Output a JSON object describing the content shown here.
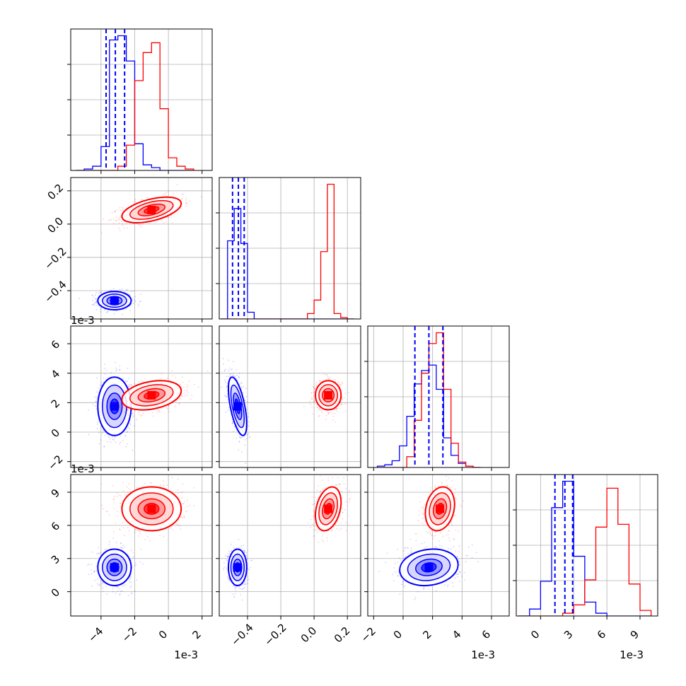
{
  "figure": {
    "type": "corner-plot",
    "offset_text": "1e-3",
    "grid": true
  },
  "colors": {
    "blue": "#0000ff",
    "red": "#ff0000",
    "grid": "#b0b0b0"
  },
  "parameters": [
    {
      "id": "p0",
      "scale": 0.001,
      "range": [
        -5.8,
        2.6
      ],
      "ticks": [
        -4,
        -2,
        0,
        2
      ],
      "offset_text": "1e-3",
      "blue": {
        "mean": -3.2,
        "sd": 0.45,
        "quantiles": [
          -3.7,
          -3.15,
          -2.6
        ]
      },
      "red": {
        "mean": -1.0,
        "sd": 0.8
      }
    },
    {
      "id": "p1",
      "scale": 1,
      "range": [
        -0.57,
        0.28
      ],
      "ticks": [
        -0.4,
        -0.2,
        0.0,
        0.2
      ],
      "blue": {
        "mean": -0.46,
        "sd": 0.025,
        "quantiles": [
          -0.49,
          -0.455,
          -0.42
        ]
      },
      "red": {
        "mean": 0.085,
        "sd": 0.035
      }
    },
    {
      "id": "p2",
      "scale": 0.001,
      "range": [
        -2.4,
        7.2
      ],
      "ticks": [
        -2,
        0,
        2,
        4,
        6
      ],
      "offset_text": "1e-3",
      "blue": {
        "mean": 1.75,
        "sd": 0.9,
        "quantiles": [
          0.8,
          1.75,
          2.7
        ]
      },
      "red": {
        "mean": 2.5,
        "sd": 0.45
      }
    },
    {
      "id": "p3",
      "scale": 0.001,
      "range": [
        -2.2,
        10.6
      ],
      "ticks": [
        0,
        3,
        6,
        9
      ],
      "offset_text": "1e-3",
      "blue": {
        "mean": 2.2,
        "sd": 0.75,
        "quantiles": [
          1.3,
          2.2,
          2.9
        ]
      },
      "red": {
        "mean": 7.5,
        "sd": 0.9
      }
    }
  ],
  "chart_data": {
    "type": "scatter",
    "subtype": "corner",
    "series": [
      {
        "name": "",
        "color": "#0000ff",
        "means": [
          -0.0032,
          -0.46,
          0.00175,
          0.0022
        ],
        "sds": [
          0.00045,
          0.025,
          0.0009,
          0.00075
        ],
        "correlations": {
          "p0-p1": 0.0,
          "p0-p2": 0.0,
          "p1-p2": -0.6,
          "p0-p3": 0.0,
          "p1-p3": 0.0,
          "p2-p3": 0.15
        },
        "quantiles_16_50_84": [
          [
            -0.0037,
            -0.00315,
            -0.0026
          ],
          [
            -0.49,
            -0.455,
            -0.42
          ],
          [
            0.0008,
            0.00175,
            0.0027
          ],
          [
            0.0013,
            0.0022,
            0.0029
          ]
        ]
      },
      {
        "name": "",
        "color": "#ff0000",
        "means": [
          -0.001,
          0.085,
          0.0025,
          0.0075
        ],
        "sds": [
          0.0008,
          0.035,
          0.00045,
          0.0009
        ],
        "correlations": {
          "p0-p1": 0.5,
          "p0-p2": 0.3,
          "p1-p2": 0.0,
          "p0-p3": 0.0,
          "p1-p3": 0.3,
          "p2-p3": 0.2
        }
      }
    ],
    "histograms": {
      "p0": {
        "bins": [
          -5.5,
          -5.0,
          -4.5,
          -4.0,
          -3.5,
          -3.0,
          -2.5,
          -2.0,
          -1.5,
          -1.0,
          -0.5,
          0.0,
          0.5,
          1.0,
          1.5
        ],
        "blue": [
          0.0,
          0.01,
          0.03,
          0.17,
          0.93,
          0.96,
          0.78,
          0.19,
          0.04,
          0.02,
          0.0,
          0.0,
          0.0,
          0.0
        ],
        "red": [
          0.0,
          0.0,
          0.0,
          0.0,
          0.0,
          0.03,
          0.18,
          0.64,
          0.84,
          0.91,
          0.44,
          0.09,
          0.03,
          0.01
        ]
      },
      "p1": {
        "bins": [
          -0.56,
          -0.52,
          -0.48,
          -0.44,
          -0.4,
          -0.36,
          -0.32,
          -0.28,
          -0.24,
          -0.2,
          -0.16,
          -0.12,
          -0.08,
          -0.04,
          0.0,
          0.04,
          0.08,
          0.12,
          0.16,
          0.2,
          0.24
        ],
        "blue": [
          0.0,
          0.58,
          0.82,
          0.56,
          0.05,
          0.0,
          0.0,
          0.0,
          0.0,
          0.0,
          0.0,
          0.0,
          0.0,
          0.0,
          0.0,
          0.0,
          0.0,
          0.0,
          0.0,
          0.0
        ],
        "red": [
          0.0,
          0.0,
          0.0,
          0.0,
          0.0,
          0.0,
          0.0,
          0.0,
          0.0,
          0.0,
          0.0,
          0.0,
          0.0,
          0.04,
          0.14,
          0.5,
          1.0,
          0.04,
          0.01,
          0.0
        ]
      },
      "p2": {
        "bins": [
          -1.75,
          -1.25,
          -0.75,
          -0.25,
          0.25,
          0.75,
          1.25,
          1.75,
          2.25,
          2.75,
          3.25,
          3.75,
          4.25,
          4.75,
          5.25
        ],
        "blue": [
          0.01,
          0.02,
          0.05,
          0.16,
          0.38,
          0.62,
          0.72,
          0.76,
          0.58,
          0.22,
          0.09,
          0.03,
          0.01,
          0.0
        ],
        "red": [
          0.0,
          0.0,
          0.0,
          0.0,
          0.08,
          0.35,
          0.7,
          0.92,
          1.0,
          0.58,
          0.18,
          0.04,
          0.01,
          0.0
        ]
      },
      "p3": {
        "bins": [
          -2.0,
          -1.0,
          0.0,
          1.0,
          2.0,
          3.0,
          4.0,
          5.0,
          6.0,
          7.0,
          8.0,
          9.0,
          10.0
        ],
        "blue": [
          0.0,
          0.05,
          0.25,
          0.78,
          0.97,
          0.43,
          0.1,
          0.02,
          0.0,
          0.0,
          0.0,
          0.0
        ],
        "red": [
          0.0,
          0.0,
          0.0,
          0.0,
          0.02,
          0.08,
          0.26,
          0.64,
          0.92,
          0.66,
          0.23,
          0.04
        ]
      }
    }
  }
}
